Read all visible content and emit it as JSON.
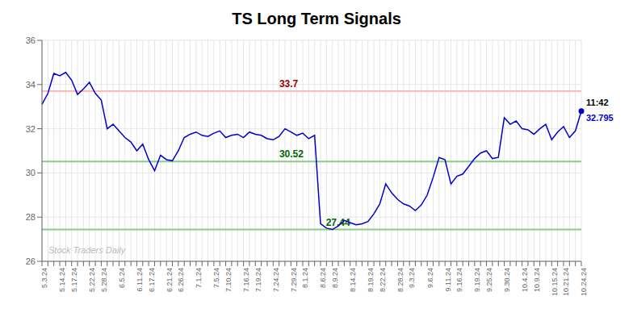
{
  "chart_data": {
    "type": "line",
    "title": "TS Long Term Signals",
    "color": "#0000cc",
    "grid": true,
    "ylim": [
      26,
      36
    ],
    "yticks": [
      26,
      28,
      30,
      32,
      34,
      36
    ],
    "categories": [
      "5.3.24",
      null,
      null,
      "5.14.24",
      null,
      "5.17.24",
      null,
      null,
      "5.22.24",
      null,
      "5.28.24",
      null,
      null,
      "6.5.24",
      null,
      null,
      "6.11.24",
      null,
      "6.17.24",
      null,
      null,
      "6.21.24",
      null,
      "6.26.24",
      null,
      null,
      "7.1.24",
      null,
      null,
      "7.5.24",
      null,
      "7.10.24",
      null,
      null,
      "7.16.24",
      null,
      "7.19.24",
      null,
      null,
      "7.24.24",
      null,
      null,
      "7.29.24",
      null,
      "8.1.24",
      null,
      null,
      "8.6.24",
      null,
      "8.9.24",
      null,
      null,
      "8.14.24",
      null,
      null,
      "8.19.24",
      null,
      "8.22.24",
      null,
      null,
      "8.28.24",
      null,
      "9.3.24",
      null,
      null,
      "9.6.24",
      null,
      null,
      "9.11.24",
      null,
      "9.16.24",
      null,
      null,
      "9.19.24",
      null,
      "9.25.24",
      null,
      null,
      "9.30.24",
      null,
      null,
      "10.4.24",
      null,
      "10.9.24",
      null,
      null,
      "10.15.24",
      null,
      "10.21.24",
      null,
      null,
      "10.24.24"
    ],
    "values": [
      33.1,
      33.6,
      34.5,
      34.4,
      34.55,
      34.2,
      33.55,
      33.8,
      34.1,
      33.6,
      33.3,
      32.0,
      32.2,
      31.9,
      31.6,
      31.4,
      31.0,
      31.3,
      30.6,
      30.1,
      30.8,
      30.6,
      30.55,
      31.0,
      31.6,
      31.75,
      31.85,
      31.7,
      31.65,
      31.8,
      31.9,
      31.6,
      31.7,
      31.75,
      31.6,
      31.85,
      31.75,
      31.7,
      31.55,
      31.5,
      31.65,
      32.0,
      31.85,
      31.7,
      31.8,
      31.55,
      31.7,
      27.7,
      27.5,
      27.44,
      27.6,
      27.85,
      27.75,
      27.65,
      27.7,
      27.8,
      28.15,
      28.6,
      29.5,
      29.1,
      28.8,
      28.6,
      28.5,
      28.3,
      28.55,
      29.0,
      29.8,
      30.7,
      30.6,
      29.5,
      29.85,
      29.95,
      30.3,
      30.65,
      30.9,
      31.0,
      30.65,
      30.7,
      32.5,
      32.2,
      32.35,
      32.0,
      31.95,
      31.75,
      32.0,
      32.2,
      31.5,
      31.85,
      32.1,
      31.6,
      31.9,
      32.795
    ],
    "hlines": [
      {
        "value": 33.7,
        "label": "33.7",
        "color": "#ffbbbb",
        "label_color": "#990000"
      },
      {
        "value": 30.52,
        "label": "30.52",
        "color": "#88cc88",
        "label_color": "#006600"
      },
      {
        "value": 27.44,
        "label": "27.44",
        "color": "#88cc88",
        "label_color": "#006600"
      }
    ],
    "last_point_labels": [
      {
        "text": "11:42",
        "color": "#000000"
      },
      {
        "text": "32.795",
        "color": "#0000cc"
      }
    ],
    "watermark": {
      "text": "Stock Traders Daily",
      "color": "#bbbbbb"
    }
  }
}
